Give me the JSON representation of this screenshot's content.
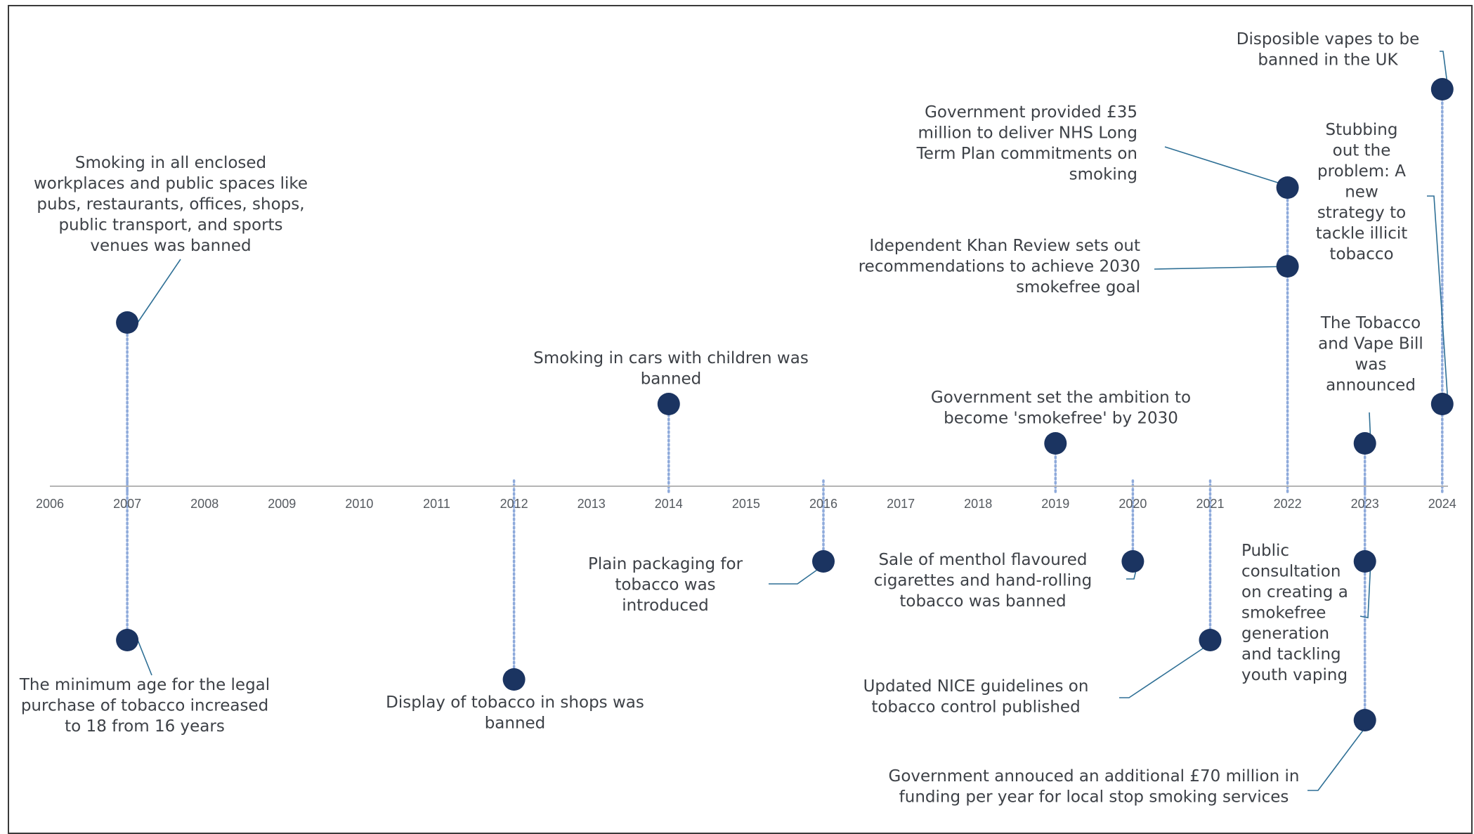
{
  "chart_data": {
    "type": "timeline",
    "axis_min": 2006,
    "axis_max": 2024,
    "years": [
      "2006",
      "2007",
      "2008",
      "2009",
      "2010",
      "2011",
      "2012",
      "2013",
      "2014",
      "2015",
      "2016",
      "2017",
      "2018",
      "2019",
      "2020",
      "2021",
      "2022",
      "2023",
      "2024"
    ],
    "colors": {
      "marker": "#1b3461",
      "stem": "#8eaadb",
      "connector": "#2e6f95",
      "axis": "#b4b4b4"
    },
    "events": [
      {
        "id": "2007-smoking-ban",
        "year": 2007,
        "side": "above",
        "lines": [
          "Smoking in all enclosed",
          "workplaces and public spaces like",
          "pubs, restaurants, offices, shops,",
          "public transport, and sports",
          "venues was banned"
        ]
      },
      {
        "id": "2007-minimum-age",
        "year": 2007,
        "side": "below",
        "lines": [
          "The minimum age for the legal",
          "purchase of tobacco increased",
          "to 18 from 16 years"
        ]
      },
      {
        "id": "2012-display-ban",
        "year": 2012,
        "side": "below",
        "lines": [
          "Display of tobacco in shops was",
          "banned"
        ]
      },
      {
        "id": "2014-cars-children",
        "year": 2014,
        "side": "above",
        "lines": [
          "Smoking in cars with children was",
          "banned"
        ]
      },
      {
        "id": "2016-plain-packaging",
        "year": 2016,
        "side": "below",
        "lines": [
          "Plain packaging for",
          "tobacco was",
          "introduced"
        ]
      },
      {
        "id": "2019-smokefree-ambition",
        "year": 2019,
        "side": "above",
        "lines": [
          "Government set the ambition to",
          "become 'smokefree' by 2030"
        ]
      },
      {
        "id": "2020-menthol-ban",
        "year": 2020,
        "side": "below",
        "lines": [
          "Sale of menthol flavoured",
          "cigarettes and hand-rolling",
          "tobacco was banned"
        ]
      },
      {
        "id": "2021-nice-guidelines",
        "year": 2021,
        "side": "below",
        "lines": [
          "Updated NICE guidelines on",
          "tobacco control published"
        ]
      },
      {
        "id": "2022-khan-review",
        "year": 2022,
        "side": "above",
        "lines": [
          "Idependent Khan Review sets out",
          "recommendations to achieve 2030",
          "smokefree goal"
        ]
      },
      {
        "id": "2022-nhs-funding",
        "year": 2022,
        "side": "above",
        "lines": [
          "Government provided £35",
          "million to deliver NHS Long",
          "Term Plan commitments on",
          "smoking"
        ]
      },
      {
        "id": "2023-tobacco-vape-bill",
        "year": 2023,
        "side": "above",
        "lines": [
          "The Tobacco",
          "and Vape Bill",
          "was",
          "announced"
        ]
      },
      {
        "id": "2023-public-consultation",
        "year": 2023,
        "side": "below",
        "lines": [
          "Public",
          "consultation",
          "on creating a",
          "smokefree",
          "generation",
          "and tackling",
          "youth vaping"
        ]
      },
      {
        "id": "2023-stop-smoking-funding",
        "year": 2023,
        "side": "below",
        "lines": [
          "Government annouced an additional £70 million in",
          "funding per year for local stop smoking services"
        ]
      },
      {
        "id": "2024-illicit-tobacco",
        "year": 2024,
        "side": "above",
        "lines": [
          "Stubbing",
          "out the",
          "problem: A",
          "new",
          "strategy to",
          "tackle illicit",
          "tobacco"
        ]
      },
      {
        "id": "2024-disposable-vapes",
        "year": 2024,
        "side": "above",
        "lines": [
          "Disposible vapes to be",
          "banned in the UK"
        ]
      }
    ]
  }
}
